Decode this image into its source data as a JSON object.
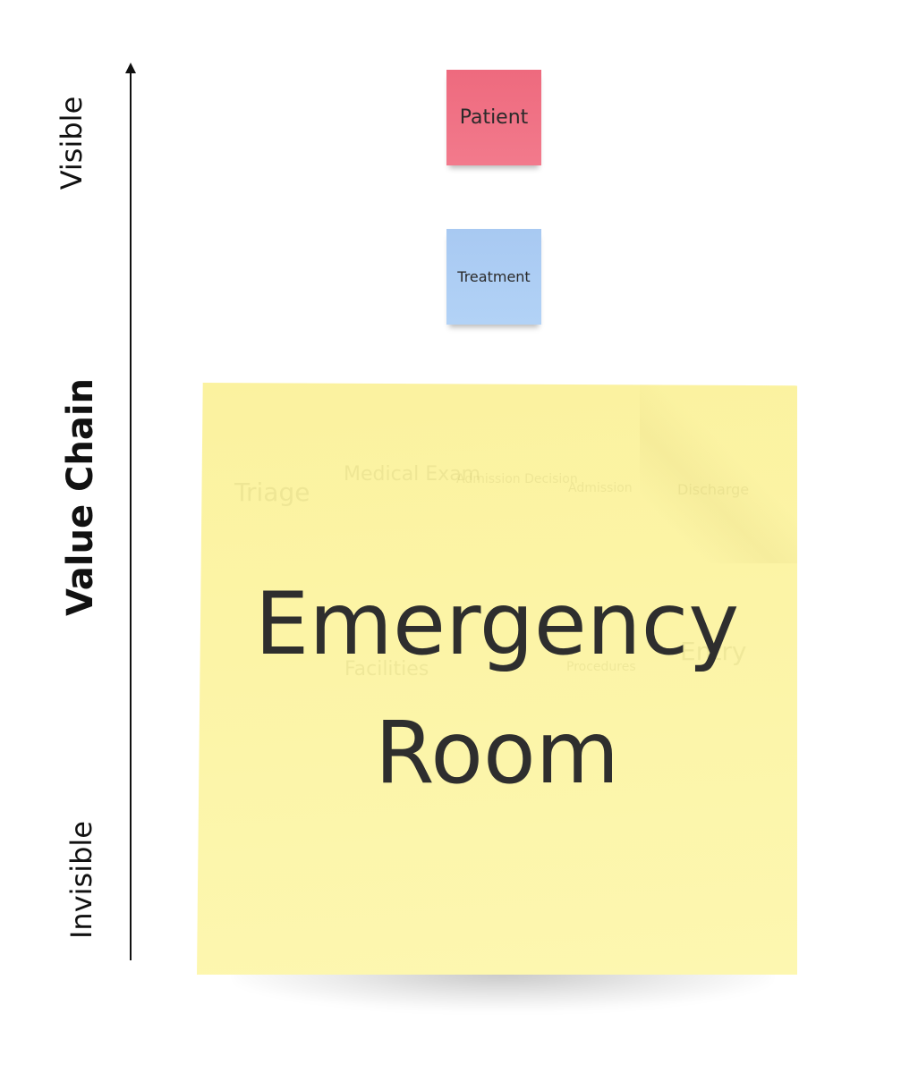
{
  "axis": {
    "top_label": "Visible",
    "title": "Value Chain",
    "bottom_label": "Invisible"
  },
  "notes": {
    "patient": {
      "label": "Patient",
      "color": "#f27a8c"
    },
    "treatment": {
      "label": "Treatment",
      "color": "#b2d2f6"
    },
    "main": {
      "line1": "Emergency",
      "line2": "Room",
      "color": "#fdf7b0"
    }
  },
  "ghost_text": [
    "Triage",
    "Medical Exam",
    "Admission Decision",
    "Admission",
    "Discharge",
    "Facilities",
    "Procedures",
    "Entry"
  ]
}
